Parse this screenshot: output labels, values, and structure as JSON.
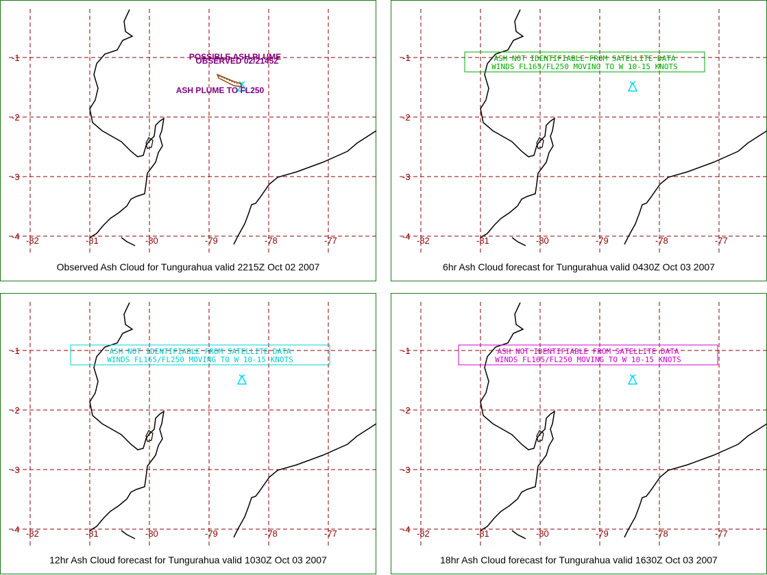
{
  "colors": {
    "grid": "#8b0000",
    "frame": "#1a7a1a",
    "coast": "#000000",
    "volcano": "#00d8ff"
  },
  "axes": {
    "lon_ticks": [
      "-82",
      "-81",
      "-80",
      "-79",
      "-78",
      "-77"
    ],
    "lat_ticks": [
      "-1",
      "-2",
      "-3",
      "-4"
    ]
  },
  "panels": [
    {
      "caption": "Observed Ash Cloud for Tungurahua valid 2215Z Oct 02 2007",
      "plume_label": "POSSIBLE ASH PLUME",
      "observed_label": "OBSERVED 02/2145Z",
      "height_label": "ASH PLUME TO FL250",
      "text_color": "#800080"
    },
    {
      "caption": "6hr Ash Cloud forecast for Tungurahua valid 0430Z Oct 03 2007",
      "box_line1": "ASH NOT IDENTIFIABLE FROM SATELLITE DATA",
      "box_line2": "WINDS FL165/FL250 MOVING TO W 10-15 KNOTS",
      "box_color": "#00aa00"
    },
    {
      "caption": "12hr Ash Cloud forecast for Tungurahua valid 1030Z Oct 03 2007",
      "box_line1": "ASH NOT IDENTIFIABLE FROM SATELLITE DATA",
      "box_line2": "WINDS FL165/FL250 MOVING TO W 10-15 KNOTS",
      "box_color": "#00cccc"
    },
    {
      "caption": "18hr Ash Cloud forecast for Tungurahua valid 1630Z Oct 03 2007",
      "box_line1": "ASH NOT IDENTIFIABLE FROM SATELLITE DATA",
      "box_line2": "WINDS FL165/FL250 MOVING TO W 10-15 KNOTS",
      "box_color": "#cc00cc"
    }
  ]
}
